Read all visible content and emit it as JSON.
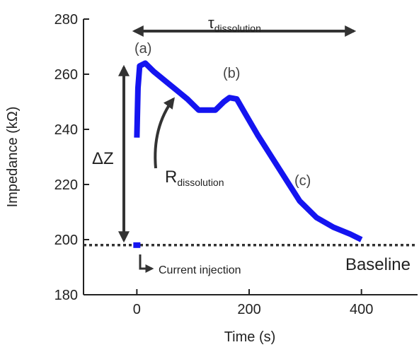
{
  "chart_data": {
    "type": "line",
    "x_label": "Time (s)",
    "y_label": "Impedance (kΩ)",
    "xlim": [
      -95,
      500
    ],
    "xticks": [
      0,
      200,
      400
    ],
    "ylim": [
      180,
      280
    ],
    "yticks": [
      180,
      200,
      220,
      240,
      260,
      280
    ],
    "series": [
      {
        "color": "#1414f0",
        "x": [
          0,
          2,
          5,
          15,
          30,
          60,
          90,
          110,
          140,
          155,
          165,
          178,
          195,
          215,
          240,
          265,
          290,
          320,
          350,
          380,
          400
        ],
        "values": [
          237,
          255,
          263,
          264,
          261,
          256,
          251,
          247,
          247,
          250,
          251.5,
          251,
          245,
          238,
          230,
          222,
          214,
          208,
          204.5,
          202,
          200
        ]
      }
    ],
    "baseline": {
      "value": 198,
      "label": "Baseline",
      "color": "#333333"
    },
    "injection": {
      "x": 0,
      "y": 198,
      "label": "Current injection"
    },
    "annotations": [
      "(a)",
      "(b)",
      "(c)",
      "ΔZ"
    ],
    "tau": {
      "text": "τ",
      "subscript": "dissolution"
    },
    "rate": {
      "text": "R",
      "subscript": "dissolution"
    }
  }
}
